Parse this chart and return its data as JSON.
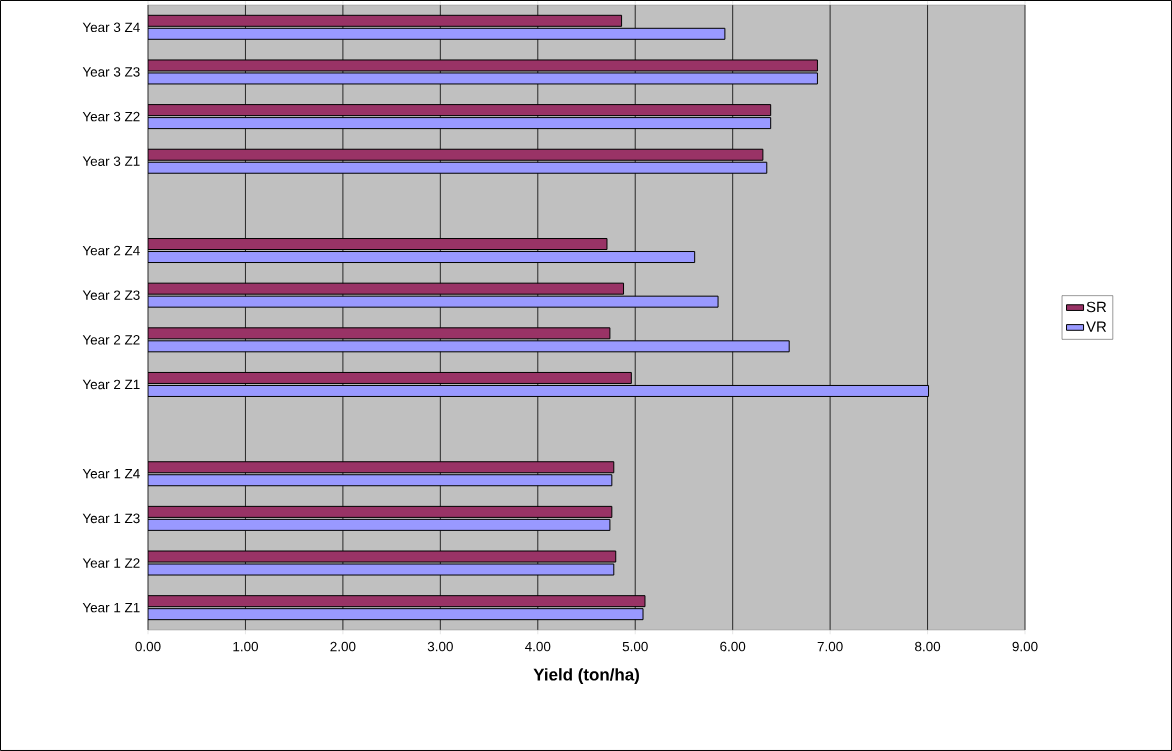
{
  "chart_data": {
    "type": "bar",
    "orientation": "horizontal",
    "xlabel": "Yield (ton/ha)",
    "categories": [
      "Year 3 Z4",
      "Year 3 Z3",
      "Year 3 Z2",
      "Year 3 Z1",
      null,
      "Year 2 Z4",
      "Year 2 Z3",
      "Year 2 Z2",
      "Year 2 Z1",
      null,
      "Year 1 Z4",
      "Year 1 Z3",
      "Year 1 Z2",
      "Year 1 Z1"
    ],
    "series": [
      {
        "name": "SR",
        "color": "#993366",
        "values": [
          4.86,
          6.87,
          6.39,
          6.31,
          null,
          4.71,
          4.88,
          4.74,
          4.96,
          null,
          4.78,
          4.76,
          4.8,
          5.1
        ]
      },
      {
        "name": "VR",
        "color": "#9999ff",
        "values": [
          5.92,
          6.87,
          6.39,
          6.35,
          null,
          5.61,
          5.85,
          6.58,
          8.01,
          null,
          4.76,
          4.74,
          4.78,
          5.08
        ]
      }
    ],
    "xlim": [
      0,
      9
    ],
    "xticks": [
      {
        "value": 0,
        "label": "0.00"
      },
      {
        "value": 1,
        "label": "1.00"
      },
      {
        "value": 2,
        "label": "2.00"
      },
      {
        "value": 3,
        "label": "3.00"
      },
      {
        "value": 4,
        "label": "4.00"
      },
      {
        "value": 5,
        "label": "5.00"
      },
      {
        "value": 6,
        "label": "6.00"
      },
      {
        "value": 7,
        "label": "7.00"
      },
      {
        "value": 8,
        "label": "8.00"
      },
      {
        "value": 9,
        "label": "9.00"
      }
    ],
    "grid": "x",
    "legend": "right"
  }
}
